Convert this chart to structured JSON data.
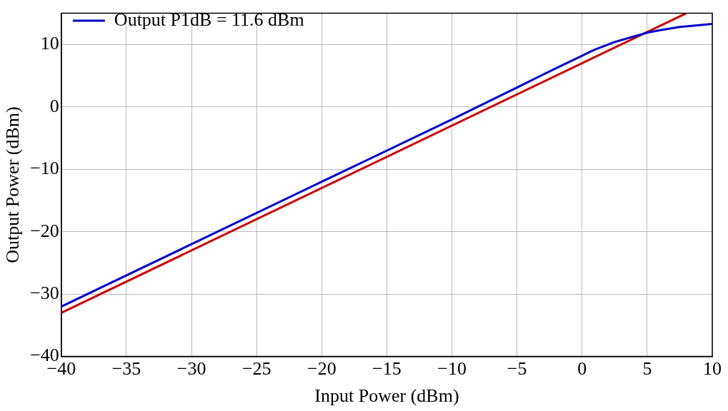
{
  "chart_data": {
    "type": "line",
    "xlabel": "Input Power (dBm)",
    "ylabel": "Output Power (dBm)",
    "xlim": [
      -40,
      10
    ],
    "ylim": [
      -40,
      15
    ],
    "xticks": [
      -40,
      -35,
      -30,
      -25,
      -20,
      -15,
      -10,
      -5,
      0,
      5,
      10
    ],
    "yticks": [
      -40,
      -30,
      -20,
      -10,
      0,
      10
    ],
    "grid": true,
    "legend": "top left",
    "marker": "none",
    "line_style": "solid",
    "series": [
      {
        "name": "Output P1dB = 11.6 dBm",
        "color": "#0000cc",
        "x": [
          -40,
          -30,
          -20,
          -10,
          -5,
          -2,
          0,
          0.5,
          1,
          1.5,
          2,
          2.5,
          3,
          3.5,
          4,
          4.5,
          5,
          6,
          7.5,
          9,
          10
        ],
        "values": [
          -32,
          -22,
          -12,
          -2,
          3.1,
          6.2,
          8.2,
          8.7,
          9.2,
          9.6,
          10,
          10.4,
          10.7,
          11,
          11.3,
          11.6,
          11.9,
          12.3,
          12.8,
          13.1,
          13.3
        ]
      },
      {
        "color": "#cc0000",
        "x": [
          -40,
          8
        ],
        "values": [
          -33,
          15
        ]
      }
    ]
  }
}
